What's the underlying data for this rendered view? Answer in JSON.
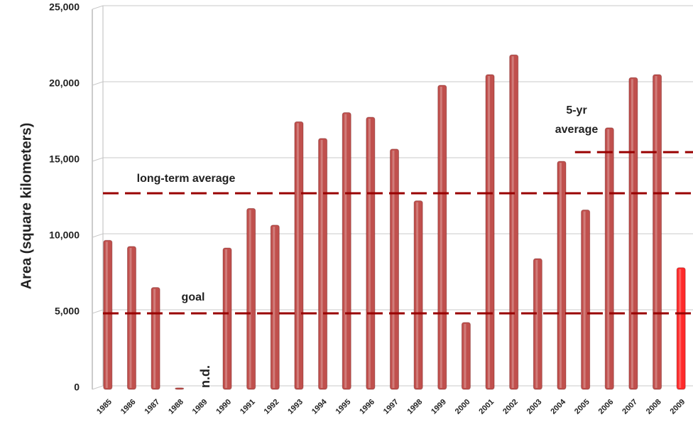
{
  "chart_data": {
    "type": "bar",
    "y_label": "Area (square kilometers)",
    "categories": [
      "1985",
      "1986",
      "1987",
      "1988",
      "1989",
      "1990",
      "1991",
      "1992",
      "1993",
      "1994",
      "1995",
      "1996",
      "1997",
      "1998",
      "1999",
      "2000",
      "2001",
      "2002",
      "2003",
      "2004",
      "2005",
      "2006",
      "2007",
      "2008",
      "2009"
    ],
    "values": [
      9800,
      9400,
      6700,
      100,
      null,
      9300,
      11900,
      10800,
      17600,
      16500,
      18200,
      17900,
      15800,
      12400,
      20000,
      4400,
      20700,
      22000,
      8600,
      15000,
      11800,
      17200,
      20500,
      20700,
      8000
    ],
    "colors": [
      "#c0504d",
      "#c0504d",
      "#c0504d",
      "#c0504d",
      "#c0504d",
      "#c0504d",
      "#c0504d",
      "#c0504d",
      "#c0504d",
      "#c0504d",
      "#c0504d",
      "#c0504d",
      "#c0504d",
      "#c0504d",
      "#c0504d",
      "#c0504d",
      "#c0504d",
      "#c0504d",
      "#c0504d",
      "#c0504d",
      "#c0504d",
      "#c0504d",
      "#c0504d",
      "#c0504d",
      "#ff2a2a"
    ],
    "null_label": "n.d.",
    "reference_lines": [
      {
        "label": "long-term average",
        "value": 12900,
        "color": "#990000"
      },
      {
        "label": "goal",
        "value": 5000,
        "color": "#990000"
      },
      {
        "label": "5-yr average",
        "value": 15600,
        "start": "2005",
        "color": "#990000"
      }
    ],
    "ylim": [
      0,
      25000
    ],
    "yticks": [
      0,
      {
        "value": 5000,
        "label": "5,000"
      },
      {
        "value": 10000,
        "label": "10,000"
      },
      {
        "value": 15000,
        "label": "15,000"
      },
      {
        "value": 20000,
        "label": "20,000"
      },
      {
        "value": 25000,
        "label": "25,000"
      }
    ],
    "grid": true
  }
}
